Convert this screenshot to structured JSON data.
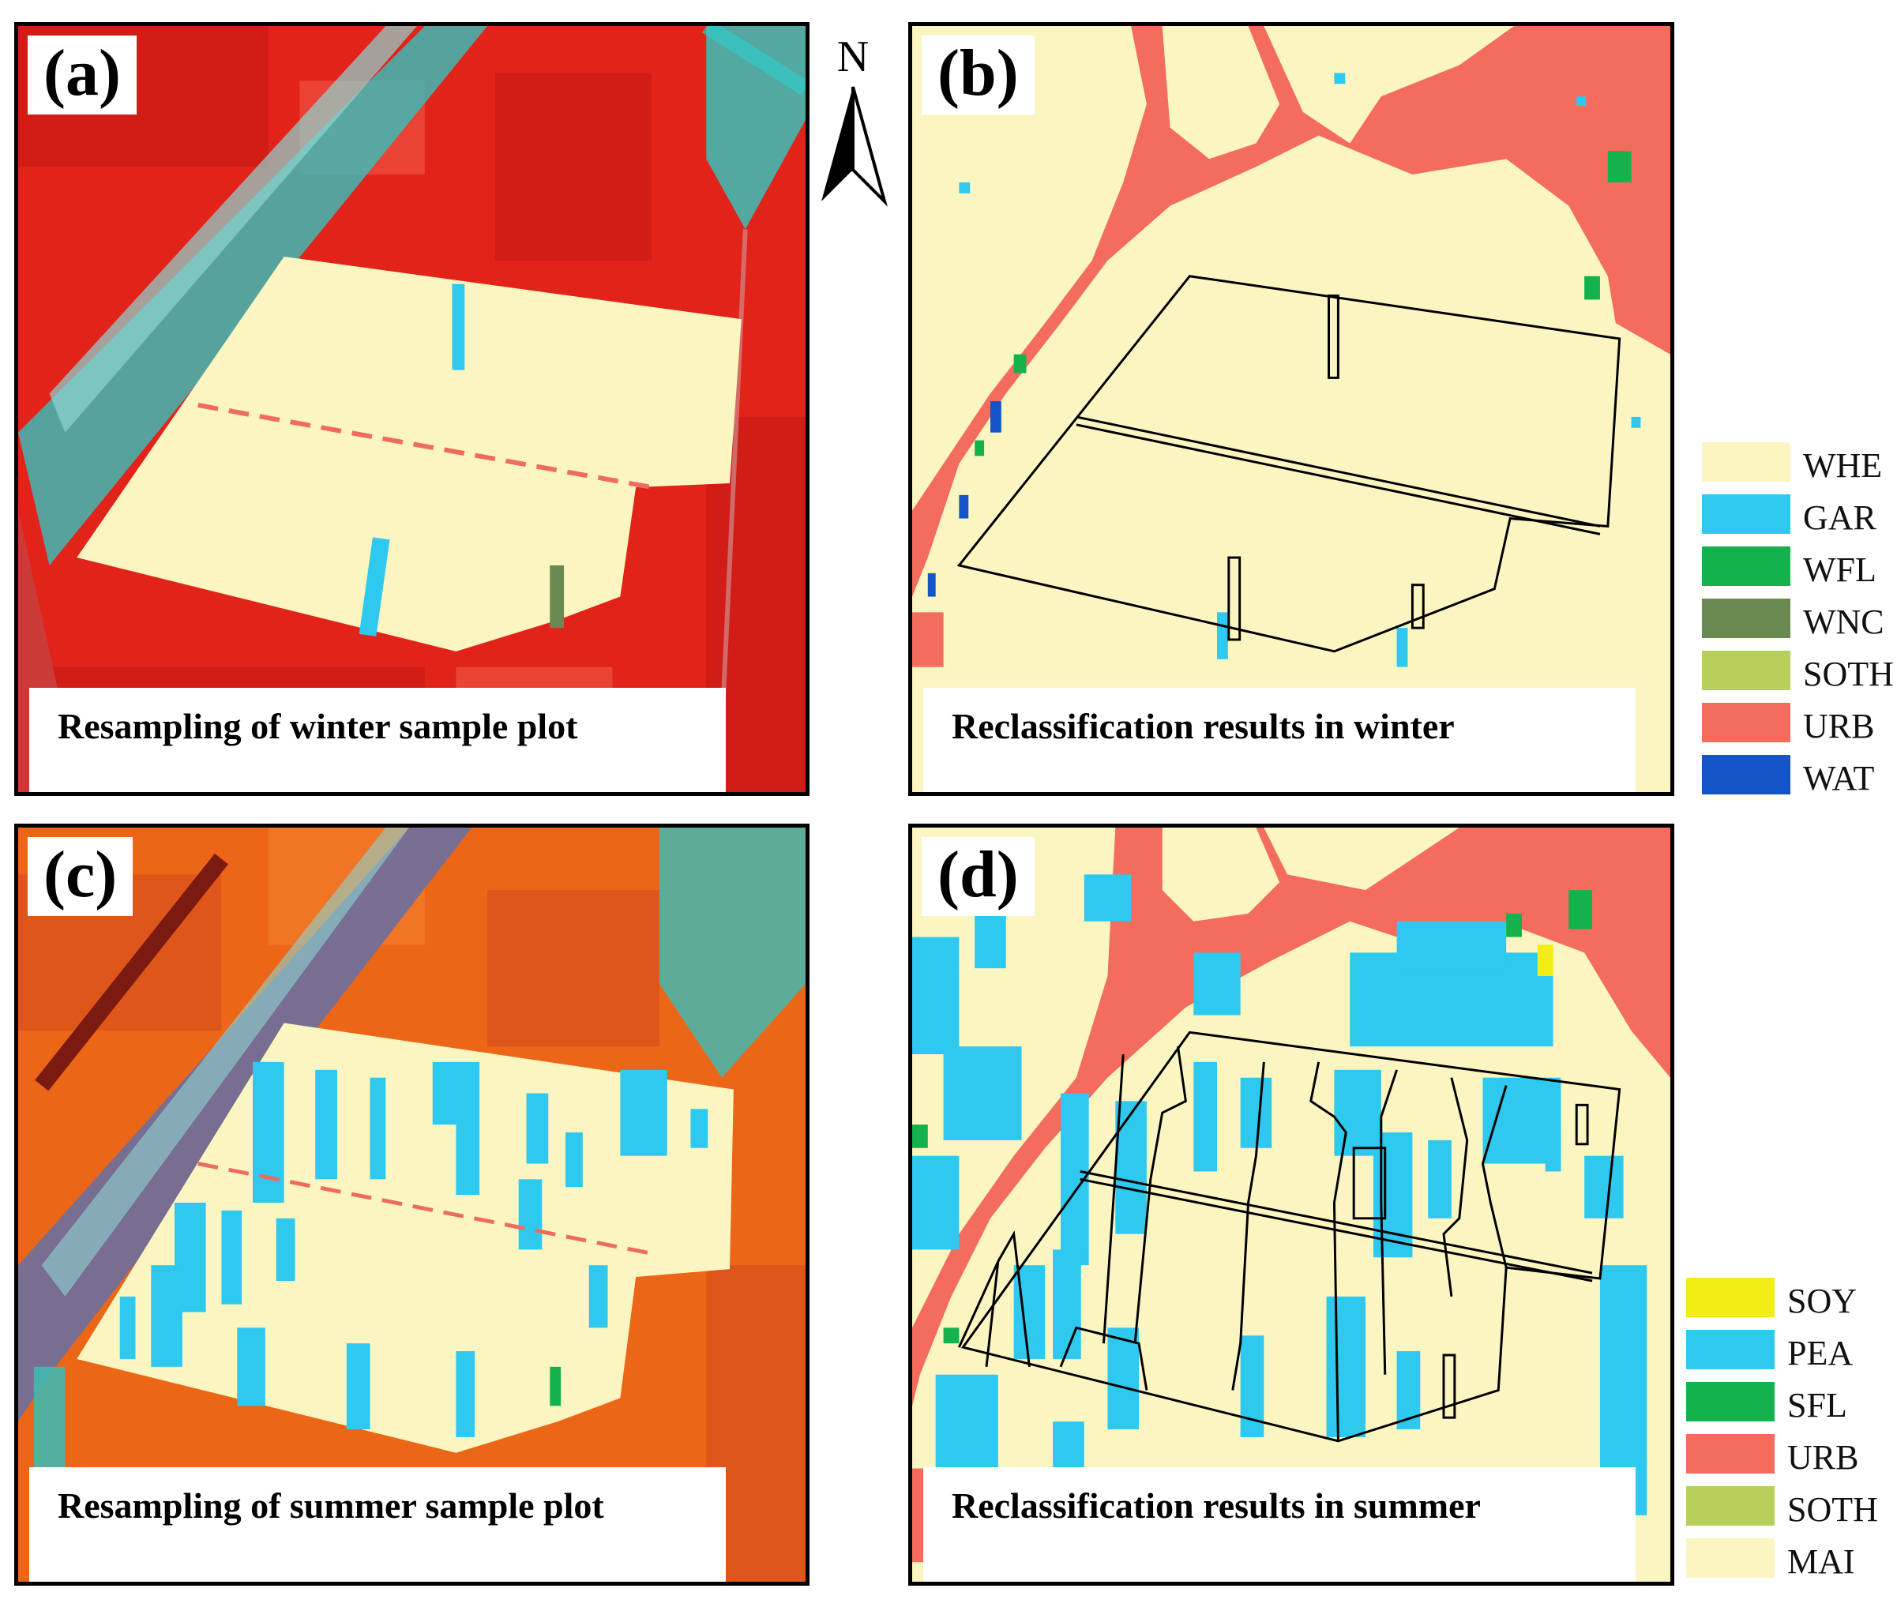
{
  "panels": {
    "a": {
      "label": "(a)",
      "caption": "Resampling of winter sample plot"
    },
    "b": {
      "label": "(b)",
      "caption": "Reclassification results in winter"
    },
    "c": {
      "label": "(c)",
      "caption": "Resampling of summer sample plot"
    },
    "d": {
      "label": "(d)",
      "caption": "Reclassification results in summer"
    }
  },
  "north_arrow": {
    "label": "N"
  },
  "legend_winter": [
    {
      "code": "WHE",
      "color": "#fbf6c1"
    },
    {
      "code": "GAR",
      "color": "#2fc8ef"
    },
    {
      "code": "WFL",
      "color": "#14b24c"
    },
    {
      "code": "WNC",
      "color": "#6a8a52"
    },
    {
      "code": "SOTH",
      "color": "#b7d05c"
    },
    {
      "code": "URB",
      "color": "#f36c5e"
    },
    {
      "code": "WAT",
      "color": "#1454c8"
    }
  ],
  "legend_summer": [
    {
      "code": "SOY",
      "color": "#f2ee15"
    },
    {
      "code": "PEA",
      "color": "#2fc8ef"
    },
    {
      "code": "SFL",
      "color": "#14b24c"
    },
    {
      "code": "URB",
      "color": "#f36c5e"
    },
    {
      "code": "SOTH",
      "color": "#b7d05c"
    },
    {
      "code": "MAI",
      "color": "#fbf6c1"
    }
  ]
}
